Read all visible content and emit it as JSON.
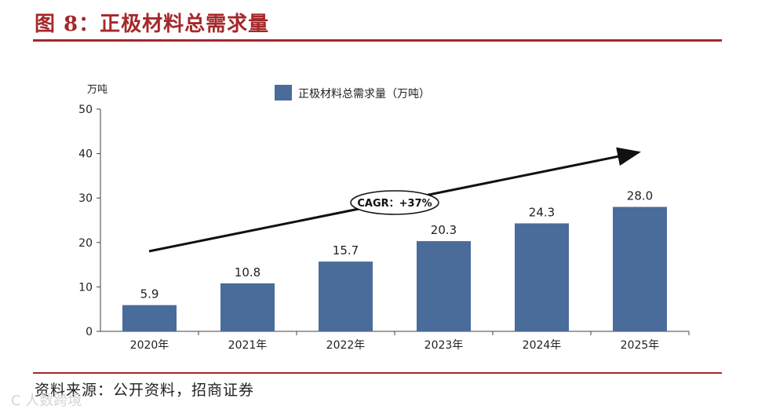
{
  "figure": {
    "title": "图 8：正极材料总需求量",
    "source": "资料来源：公开资料，招商证券",
    "watermark": "C 人数跨境"
  },
  "colors": {
    "bar": "#4a6c9b",
    "title": "#a5282b",
    "axis": "#404040"
  },
  "chart_data": {
    "type": "bar",
    "categories": [
      "2020年",
      "2021年",
      "2022年",
      "2023年",
      "2024年",
      "2025年"
    ],
    "series": [
      {
        "name": "正极材料总需求量（万吨）",
        "values": [
          5.9,
          10.8,
          15.7,
          20.3,
          24.3,
          28.0
        ]
      }
    ],
    "data_labels": [
      "5.9",
      "10.8",
      "15.7",
      "20.3",
      "24.3",
      "28.0"
    ],
    "ylabel": "万吨",
    "ylim": [
      0,
      50
    ],
    "yticks": [
      0,
      10,
      20,
      30,
      40,
      50
    ],
    "legend_position": "top-center",
    "grid": false,
    "annotation": {
      "text": "CAGR：+37%",
      "shape": "arrow-trend"
    }
  }
}
